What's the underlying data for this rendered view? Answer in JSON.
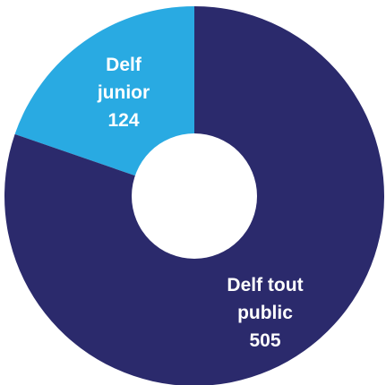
{
  "chart_data": {
    "type": "pie",
    "donut": true,
    "title": "",
    "slices": [
      {
        "label_lines": [
          "Delf",
          "junior"
        ],
        "value": 124,
        "value_text": "124",
        "color": "#29aae2"
      },
      {
        "label_lines": [
          "Delf tout",
          "public"
        ],
        "value": 505,
        "value_text": "505",
        "color": "#2b2a6c"
      }
    ],
    "legend": "none",
    "center_color": "#ffffff"
  }
}
